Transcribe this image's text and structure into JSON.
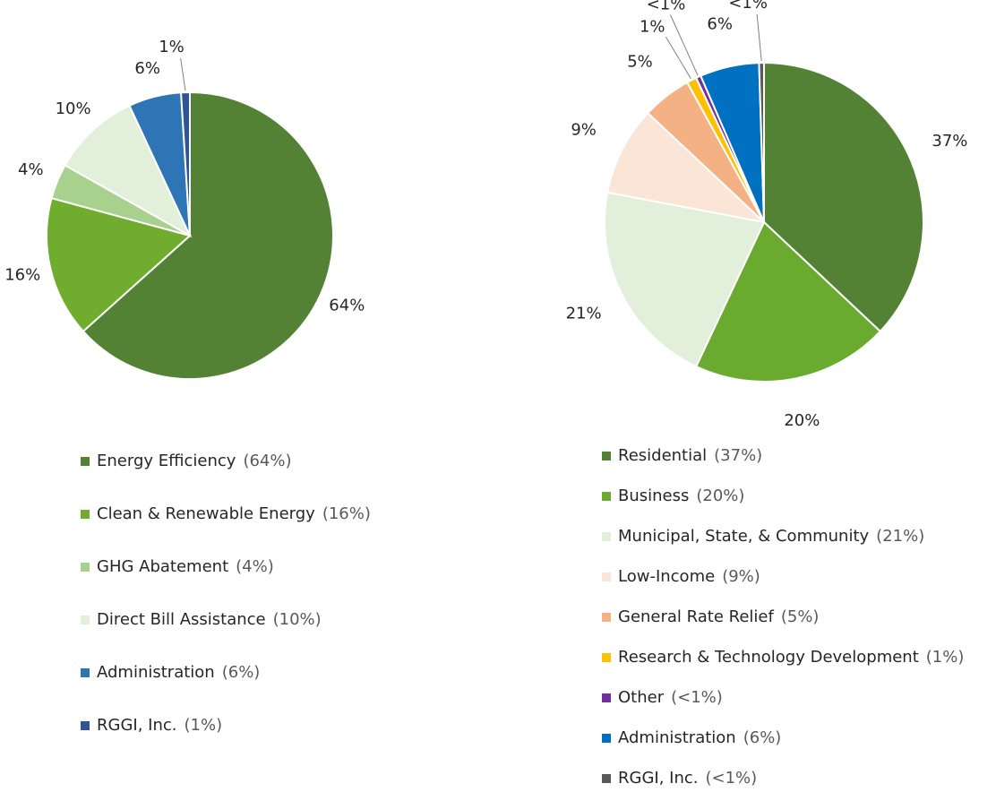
{
  "chart_data": [
    {
      "type": "pie",
      "categories": [
        "Energy Efficiency",
        "Clean & Renewable Energy",
        "GHG Abatement",
        "Direct Bill Assistance",
        "Administration",
        "RGGI, Inc."
      ],
      "values": [
        64,
        16,
        4,
        10,
        6,
        1
      ],
      "value_labels": [
        "64%",
        "16%",
        "4%",
        "10%",
        "6%",
        "1%"
      ],
      "legend_values": [
        "(64%)",
        "(16%)",
        "(4%)",
        "(10%)",
        "(6%)",
        "(1%)"
      ],
      "colors": [
        "#548235",
        "#70ad2f",
        "#a9d18e",
        "#e2efda",
        "#2e75b6",
        "#2f5597"
      ]
    },
    {
      "type": "pie",
      "categories": [
        "Residential",
        "Business",
        "Municipal, State, & Community",
        "Low-Income",
        "General Rate Relief",
        "Research & Technology Development",
        "Other",
        "Administration",
        "RGGI, Inc."
      ],
      "values": [
        37,
        20,
        21,
        9,
        5,
        1,
        0.5,
        6,
        0.5
      ],
      "value_labels": [
        "37%",
        "20%",
        "21%",
        "9%",
        "5%",
        "1%",
        "<1%",
        "6%",
        "<1%"
      ],
      "legend_values": [
        "(37%)",
        "(20%)",
        "(21%)",
        "(9%)",
        "(5%)",
        "(1%)",
        "(<1%)",
        "(6%)",
        "(<1%)"
      ],
      "colors": [
        "#548235",
        "#6aaa2e",
        "#e2efda",
        "#fbe5d6",
        "#f4b183",
        "#ffc000",
        "#7030a0",
        "#0070c0",
        "#595959"
      ]
    }
  ]
}
